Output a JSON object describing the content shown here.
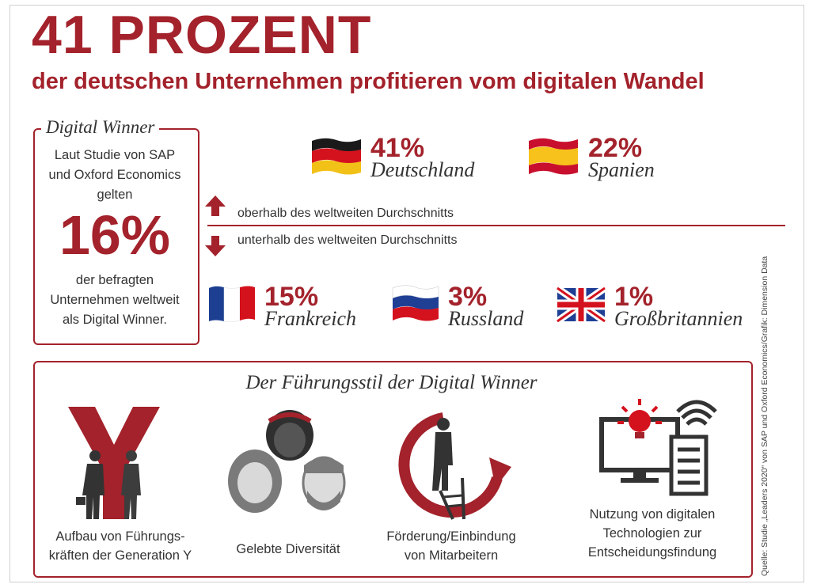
{
  "title": "41 PROZENT",
  "subtitle": "der deutschen Unternehmen profitieren vom digitalen Wandel",
  "winner": {
    "heading": "Digital Winner",
    "line1": "Laut Studie von SAP",
    "line2": "und Oxford Economics",
    "line3": "gelten",
    "big": "16%",
    "line4": "der befragten",
    "line5": "Unternehmen weltweit",
    "line6": "als Digital Winner."
  },
  "above_label": "oberhalb des weltweiten Durchschnitts",
  "below_label": "unterhalb des weltweiten Durchschnitts",
  "countries": [
    {
      "pct": "41%",
      "name": "Deutschland",
      "flag": "germany-flag"
    },
    {
      "pct": "22%",
      "name": "Spanien",
      "flag": "spain-flag"
    },
    {
      "pct": "15%",
      "name": "Frankreich",
      "flag": "france-flag"
    },
    {
      "pct": "3%",
      "name": "Russland",
      "flag": "russia-flag"
    },
    {
      "pct": "1%",
      "name": "Großbritannien",
      "flag": "uk-flag"
    }
  ],
  "leadership": {
    "heading": "Der Führungsstil der Digital Winner",
    "items": [
      {
        "line1": "Aufbau von Führungs-",
        "line2": "kräften der Generation Y",
        "icon": "generation-y-icon"
      },
      {
        "line1": "Gelebte Diversität",
        "line2": "",
        "icon": "diversity-faces-icon"
      },
      {
        "line1": "Förderung/Einbindung",
        "line2": "von Mitarbeitern",
        "icon": "ladder-arrow-icon"
      },
      {
        "line1": "Nutzung von digitalen",
        "line2": "Technologien zur",
        "line3": "Entscheidungsfindung",
        "icon": "digital-technology-icon"
      }
    ]
  },
  "source": "Quelle: Studie „Leaders 2020“ von SAP und Oxford Economics/Grafik: Dimension Data",
  "colors": {
    "accent": "#a3222b",
    "text": "#333333"
  }
}
